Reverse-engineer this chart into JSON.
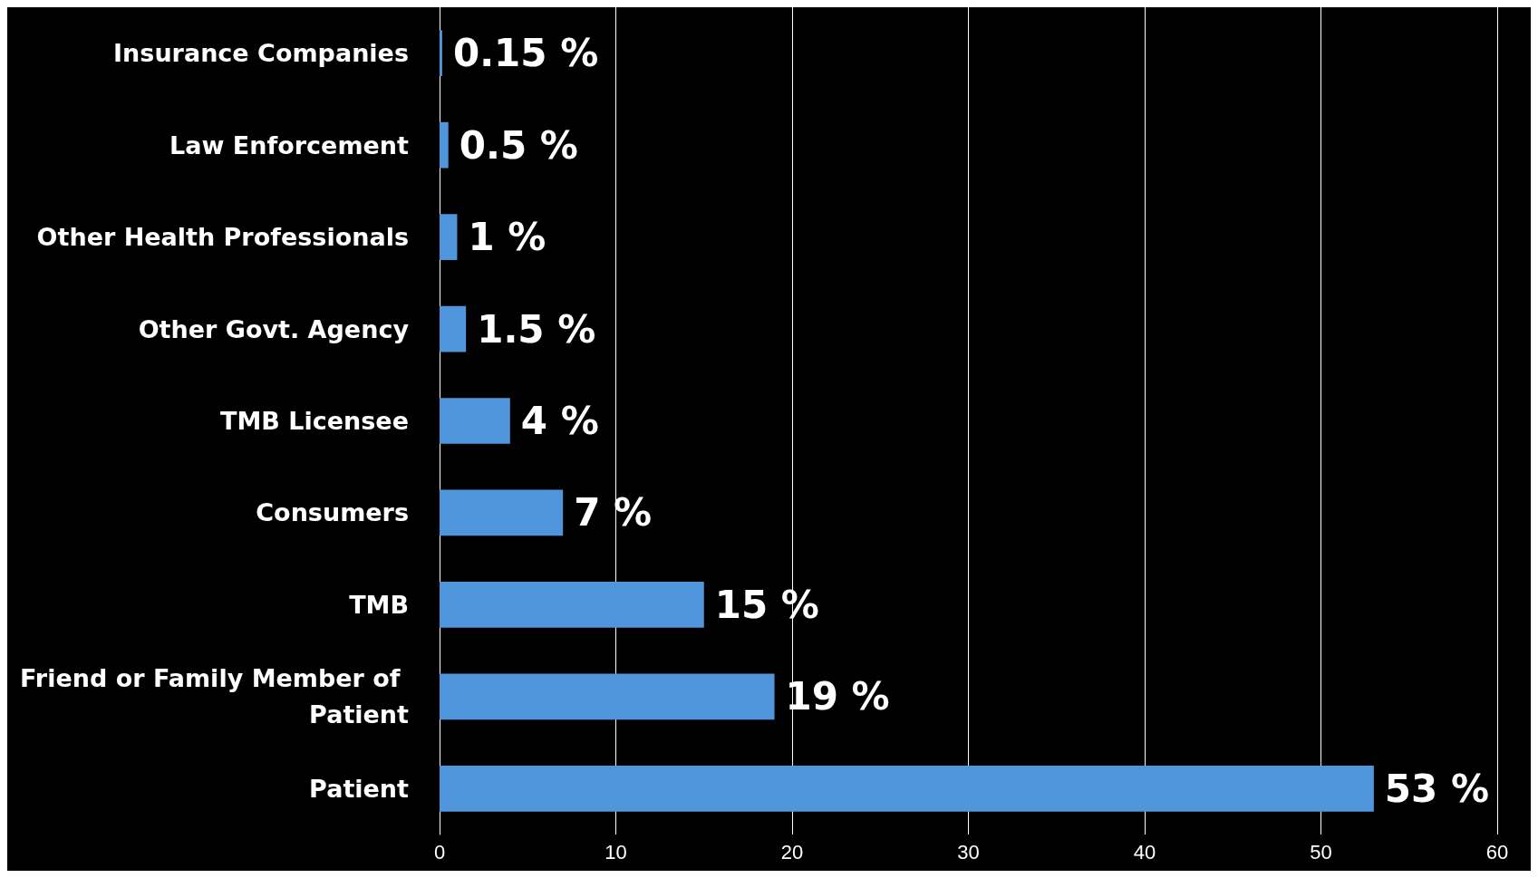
{
  "chart_data": {
    "type": "bar",
    "orientation": "horizontal",
    "categories": [
      "Insurance Companies",
      "Law Enforcement",
      "Other Health Professionals",
      "Other Govt. Agency",
      "TMB Licensee",
      "Consumers",
      "TMB",
      "Friend or Family Member of Patient",
      "Patient"
    ],
    "values": [
      0.15,
      0.5,
      1,
      1.5,
      4,
      7,
      15,
      19,
      53
    ],
    "value_labels": [
      "0.15 %",
      "0.5 %",
      "1 %",
      "1.5 %",
      "4 %",
      "7 %",
      "15 %",
      "19 %",
      "53 %"
    ],
    "color": "#5096dc",
    "xlim": [
      0,
      60
    ],
    "xticks": [
      0,
      10,
      20,
      30,
      40,
      50,
      60
    ],
    "grid": "x"
  }
}
